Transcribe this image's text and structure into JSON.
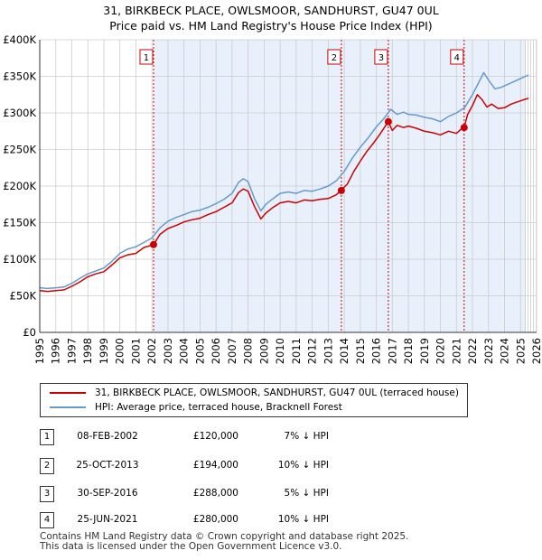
{
  "title_line1": "31, BIRKBECK PLACE, OWLSMOOR, SANDHURST, GU47 0UL",
  "title_line2": "Price paid vs. HM Land Registry's House Price Index (HPI)",
  "colors": {
    "price": "#cc0000",
    "hpi": "#6699cc",
    "shade": "#e8f0fb",
    "grid": "#cccccc"
  },
  "chart_data": {
    "type": "line",
    "ylim": [
      0,
      400000
    ],
    "xlim": [
      1995,
      2026
    ],
    "yticks": [
      0,
      50000,
      100000,
      150000,
      200000,
      250000,
      300000,
      350000,
      400000
    ],
    "ytick_labels": [
      "£0",
      "£50K",
      "£100K",
      "£150K",
      "£200K",
      "£250K",
      "£300K",
      "£350K",
      "£400K"
    ],
    "xticks": [
      1995,
      1996,
      1997,
      1998,
      1999,
      2000,
      2001,
      2002,
      2003,
      2004,
      2005,
      2006,
      2007,
      2008,
      2009,
      2010,
      2011,
      2012,
      2013,
      2014,
      2015,
      2016,
      2017,
      2018,
      2019,
      2020,
      2021,
      2022,
      2023,
      2024,
      2025,
      2026
    ],
    "xtick_labels": [
      "1995",
      "1996",
      "1997",
      "1998",
      "1999",
      "2000",
      "2001",
      "2002",
      "2003",
      "2004",
      "2005",
      "2006",
      "2007",
      "2008",
      "2009",
      "2010",
      "2011",
      "2012",
      "2013",
      "2014",
      "2015",
      "2016",
      "2017",
      "2018",
      "2019",
      "2020",
      "2021",
      "2022",
      "2023",
      "2024",
      "2025",
      "2026"
    ],
    "series": [
      {
        "name": "31, BIRKBECK PLACE, OWLSMOOR, SANDHURST, GU47 0UL (terraced house)",
        "color": "#cc0000",
        "x": [
          1995.0,
          1995.5,
          1996.0,
          1996.5,
          1997.0,
          1997.5,
          1998.0,
          1998.5,
          1999.0,
          1999.5,
          2000.0,
          2000.5,
          2001.0,
          2001.5,
          2002.1,
          2002.5,
          2003.0,
          2003.5,
          2004.0,
          2004.5,
          2005.0,
          2005.5,
          2006.0,
          2006.5,
          2007.0,
          2007.4,
          2007.7,
          2008.0,
          2008.4,
          2008.8,
          2009.1,
          2009.5,
          2010.0,
          2010.5,
          2011.0,
          2011.5,
          2012.0,
          2012.5,
          2013.0,
          2013.5,
          2013.8,
          2014.2,
          2014.6,
          2015.0,
          2015.4,
          2015.8,
          2016.2,
          2016.5,
          2016.75,
          2017.0,
          2017.3,
          2017.7,
          2018.0,
          2018.5,
          2019.0,
          2019.5,
          2020.0,
          2020.5,
          2021.0,
          2021.3,
          2021.48,
          2021.7,
          2022.0,
          2022.3,
          2022.6,
          2022.9,
          2023.2,
          2023.6,
          2024.0,
          2024.4,
          2024.8,
          2025.2,
          2025.5
        ],
        "y": [
          57000,
          56000,
          57000,
          58000,
          63000,
          69000,
          76000,
          80000,
          83000,
          92000,
          102000,
          106000,
          108000,
          116000,
          120000,
          134000,
          142000,
          146000,
          151000,
          154000,
          156000,
          161000,
          165000,
          171000,
          177000,
          191000,
          196000,
          193000,
          172000,
          155000,
          163000,
          170000,
          177000,
          179000,
          177000,
          181000,
          180000,
          182000,
          183000,
          188000,
          194000,
          203000,
          220000,
          234000,
          247000,
          258000,
          270000,
          280000,
          288000,
          276000,
          283000,
          280000,
          282000,
          279000,
          275000,
          273000,
          270000,
          275000,
          272000,
          278000,
          280000,
          298000,
          310000,
          325000,
          318000,
          308000,
          312000,
          306000,
          307000,
          312000,
          315000,
          318000,
          320000
        ]
      },
      {
        "name": "HPI: Average price, terraced house, Bracknell Forest",
        "color": "#6699cc",
        "x": [
          1995.0,
          1995.5,
          1996.0,
          1996.5,
          1997.0,
          1997.5,
          1998.0,
          1998.5,
          1999.0,
          1999.5,
          2000.0,
          2000.5,
          2001.0,
          2001.5,
          2002.0,
          2002.5,
          2003.0,
          2003.5,
          2004.0,
          2004.5,
          2005.0,
          2005.5,
          2006.0,
          2006.5,
          2007.0,
          2007.4,
          2007.7,
          2008.0,
          2008.4,
          2008.8,
          2009.1,
          2009.5,
          2010.0,
          2010.5,
          2011.0,
          2011.5,
          2012.0,
          2012.5,
          2013.0,
          2013.5,
          2014.0,
          2014.5,
          2015.0,
          2015.5,
          2016.0,
          2016.5,
          2016.9,
          2017.3,
          2017.7,
          2018.0,
          2018.5,
          2019.0,
          2019.5,
          2020.0,
          2020.5,
          2021.0,
          2021.5,
          2022.0,
          2022.4,
          2022.7,
          2023.0,
          2023.4,
          2023.8,
          2024.2,
          2024.6,
          2025.0,
          2025.3,
          2025.5
        ],
        "y": [
          61000,
          60000,
          61000,
          62000,
          67000,
          74000,
          80000,
          84000,
          88000,
          97000,
          108000,
          114000,
          117000,
          123000,
          129000,
          143000,
          152000,
          157000,
          161000,
          165000,
          167000,
          171000,
          176000,
          182000,
          190000,
          205000,
          210000,
          206000,
          183000,
          166000,
          175000,
          182000,
          190000,
          192000,
          190000,
          194000,
          193000,
          196000,
          200000,
          207000,
          220000,
          238000,
          253000,
          266000,
          281000,
          293000,
          305000,
          298000,
          301000,
          298000,
          297000,
          294000,
          292000,
          288000,
          295000,
          300000,
          307000,
          325000,
          342000,
          355000,
          345000,
          333000,
          335000,
          339000,
          343000,
          347000,
          350000,
          352000
        ]
      }
    ],
    "transactions": [
      {
        "num": "1",
        "year": 2002.1,
        "price": 120000,
        "date": "08-FEB-2002",
        "price_label": "£120,000",
        "hpi_label": "7% ↓ HPI"
      },
      {
        "num": "2",
        "year": 2013.82,
        "price": 194000,
        "date": "25-OCT-2013",
        "price_label": "£194,000",
        "hpi_label": "10% ↓ HPI"
      },
      {
        "num": "3",
        "year": 2016.75,
        "price": 288000,
        "date": "30-SEP-2016",
        "price_label": "£288,000",
        "hpi_label": "5% ↓ HPI"
      },
      {
        "num": "4",
        "year": 2021.48,
        "price": 280000,
        "date": "25-JUN-2021",
        "price_label": "£280,000",
        "hpi_label": "10% ↓ HPI"
      }
    ]
  },
  "legend": {
    "price_label": "31, BIRKBECK PLACE, OWLSMOOR, SANDHURST, GU47 0UL (terraced house)",
    "hpi_label": "HPI: Average price, terraced house, Bracknell Forest"
  },
  "footer": {
    "line1": "Contains HM Land Registry data © Crown copyright and database right 2025.",
    "line2": "This data is licensed under the Open Government Licence v3.0."
  }
}
